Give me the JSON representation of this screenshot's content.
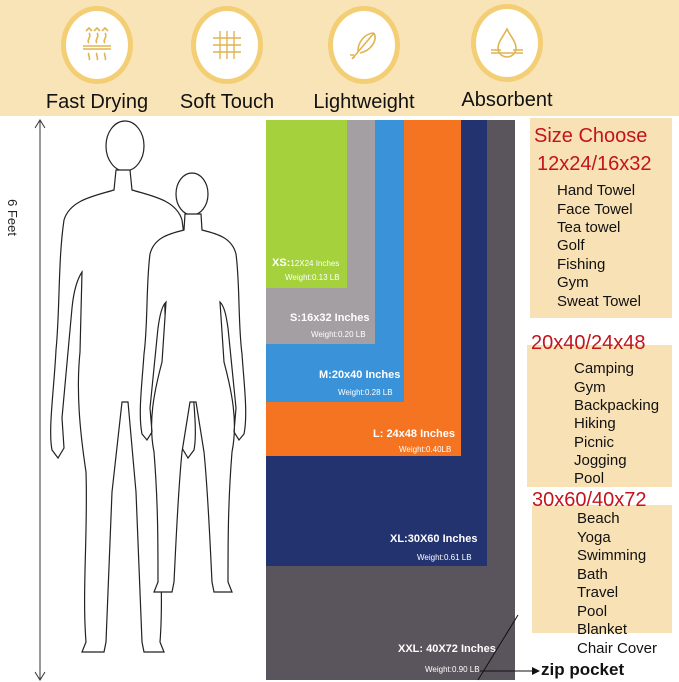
{
  "features": [
    {
      "label": "Fast Drying",
      "icon": "heat-waves-icon"
    },
    {
      "label": "Soft Touch",
      "icon": "fabric-weave-icon"
    },
    {
      "label": "Lightweight",
      "icon": "feather-icon"
    },
    {
      "label": "Absorbent",
      "icon": "water-drop-icon"
    }
  ],
  "height_label": "6 Feet",
  "sizes": [
    {
      "name": "XS:",
      "dims": "12X24 Inches",
      "weight": "Weight:0.13 LB",
      "color": "#a4d13c"
    },
    {
      "name": "S:16x32 Inches",
      "weight": "Weight:0.20 LB",
      "color": "#a39fa3"
    },
    {
      "name": "M:20x40 Inches",
      "weight": "Weight:0.28 LB",
      "color": "#3a92d8"
    },
    {
      "name": "L: 24x48 Inches",
      "weight": "Weight:0.40LB",
      "color": "#f47421"
    },
    {
      "name": "XL:30X60 Inches",
      "weight": "Weight:0.61 LB",
      "color": "#233370"
    },
    {
      "name": "XXL: 40X72 Inches",
      "weight": "Weight:0.90 LB",
      "color": "#5a555c"
    }
  ],
  "zip_pocket": "zip pocket",
  "size_choose": {
    "title": "Size Choose",
    "groups": [
      {
        "header": "12x24/16x32",
        "items": [
          "Hand Towel",
          "Face Towel",
          "Tea towel",
          "Golf",
          "Fishing",
          "Gym",
          "Sweat Towel"
        ]
      },
      {
        "header": "20x40/24x48",
        "items": [
          "Camping",
          "Gym",
          "Backpacking",
          "Hiking",
          "Picnic",
          "Jogging",
          "Pool"
        ]
      },
      {
        "header": "30x60/40x72",
        "items": [
          "Beach",
          "Yoga",
          "Swimming",
          "Bath",
          "Travel",
          "Pool",
          "Blanket",
          "Chair Cover"
        ]
      }
    ]
  },
  "colors": {
    "accent_red": "#c3141b",
    "band": "#f9e4b8",
    "ring": "#f3ce74"
  }
}
